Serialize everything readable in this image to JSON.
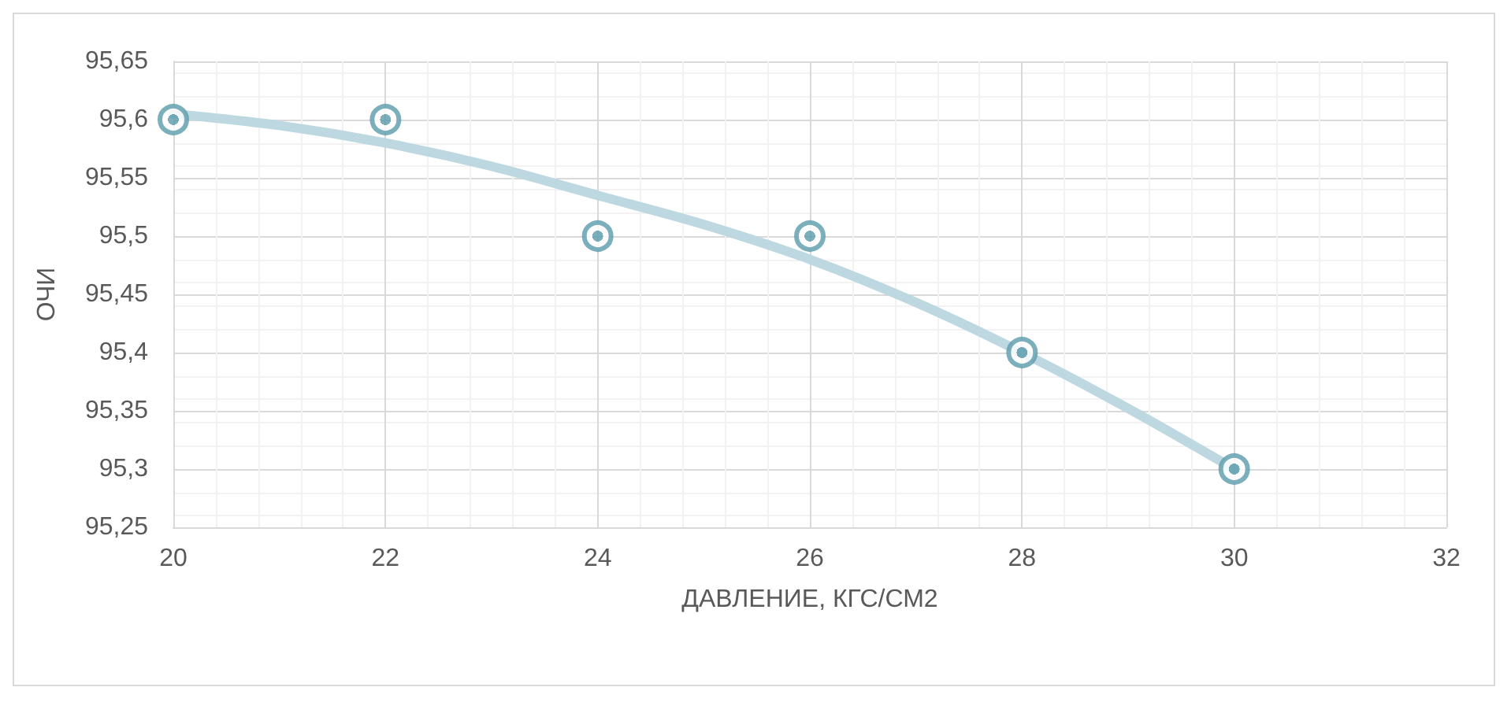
{
  "chart_data": {
    "type": "scatter",
    "xlabel": "ДАВЛЕНИЕ, КГС/СМ2",
    "ylabel": "ОЧИ",
    "x": [
      20,
      22,
      24,
      26,
      28,
      30
    ],
    "series": [
      {
        "color": "#5b9bab",
        "marker": "circle",
        "values": [
          95.6,
          95.6,
          95.5,
          95.5,
          95.4,
          95.3
        ]
      },
      {
        "type": "line",
        "color": "#bdd8e0",
        "marker": "none",
        "x": [
          20,
          21,
          22,
          23,
          24,
          25,
          26,
          27,
          28,
          29,
          30
        ],
        "values": [
          95.605,
          95.595,
          95.58,
          95.56,
          95.535,
          95.51,
          95.48,
          95.443,
          95.4,
          95.352,
          95.3
        ]
      }
    ],
    "xlim": [
      20,
      32
    ],
    "xticks": [
      20,
      22,
      24,
      26,
      28,
      30,
      32
    ],
    "ylim": [
      95.25,
      95.65
    ],
    "yticks": [
      {
        "value": 95.25,
        "label": "95,25"
      },
      {
        "value": 95.3,
        "label": "95,3"
      },
      {
        "value": 95.35,
        "label": "95,35"
      },
      {
        "value": 95.4,
        "label": "95,4"
      },
      {
        "value": 95.45,
        "label": "95,45"
      },
      {
        "value": 95.5,
        "label": "95,5"
      },
      {
        "value": 95.55,
        "label": "95,55"
      },
      {
        "value": 95.6,
        "label": "95,6"
      },
      {
        "value": 95.65,
        "label": "95,65"
      }
    ],
    "grid": true
  }
}
